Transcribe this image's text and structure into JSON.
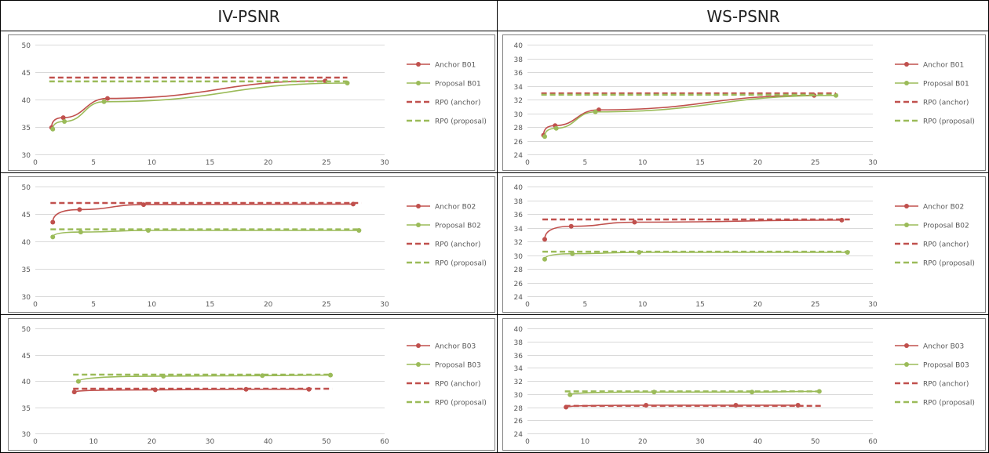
{
  "headers": [
    "IV-PSNR",
    "WS-PSNR"
  ],
  "colors": {
    "anchor": "#c0504d",
    "proposal": "#9bbb59",
    "grid": "#d9d9d9",
    "border": "#000000",
    "axis_text": "#595959"
  },
  "chart_data": [
    {
      "type": "line",
      "metric": "IV-PSNR",
      "xlim": [
        0,
        30
      ],
      "xticks": [
        0,
        5,
        10,
        15,
        20,
        25,
        30
      ],
      "ylim": [
        30,
        50
      ],
      "yticks": [
        30,
        35,
        40,
        45,
        50
      ],
      "series": [
        {
          "name": "Anchor B01",
          "kind": "anchor",
          "style": "solid",
          "x": [
            1.4,
            2.4,
            6.2,
            24.9
          ],
          "y": [
            34.9,
            36.7,
            40.2,
            43.4
          ]
        },
        {
          "name": "Proposal B01",
          "kind": "proposal",
          "style": "solid",
          "x": [
            1.5,
            2.5,
            5.9,
            26.8
          ],
          "y": [
            34.6,
            36.0,
            39.6,
            43.0
          ]
        },
        {
          "name": "RP0 (anchor)",
          "kind": "anchor",
          "style": "dashed",
          "x": [
            1.2,
            26.8
          ],
          "y": [
            44.0,
            44.0
          ]
        },
        {
          "name": "RP0 (proposal)",
          "kind": "proposal",
          "style": "dashed",
          "x": [
            1.2,
            26.8
          ],
          "y": [
            43.3,
            43.3
          ]
        }
      ]
    },
    {
      "type": "line",
      "metric": "WS-PSNR",
      "xlim": [
        0,
        30
      ],
      "xticks": [
        0,
        5,
        10,
        15,
        20,
        25,
        30
      ],
      "ylim": [
        24,
        40
      ],
      "yticks": [
        24,
        26,
        28,
        30,
        32,
        34,
        36,
        38,
        40
      ],
      "series": [
        {
          "name": "Anchor B01",
          "kind": "anchor",
          "style": "solid",
          "x": [
            1.4,
            2.4,
            6.2,
            24.9
          ],
          "y": [
            26.8,
            28.2,
            30.5,
            32.6
          ]
        },
        {
          "name": "Proposal B01",
          "kind": "proposal",
          "style": "solid",
          "x": [
            1.5,
            2.5,
            5.9,
            26.8
          ],
          "y": [
            26.6,
            27.8,
            30.2,
            32.6
          ]
        },
        {
          "name": "RP0 (anchor)",
          "kind": "anchor",
          "style": "dashed",
          "x": [
            1.2,
            26.8
          ],
          "y": [
            32.9,
            32.9
          ]
        },
        {
          "name": "RP0 (proposal)",
          "kind": "proposal",
          "style": "dashed",
          "x": [
            1.2,
            26.8
          ],
          "y": [
            32.7,
            32.7
          ]
        }
      ]
    },
    {
      "type": "line",
      "metric": "IV-PSNR",
      "xlim": [
        0,
        30
      ],
      "xticks": [
        0,
        5,
        10,
        15,
        20,
        25,
        30
      ],
      "ylim": [
        30,
        50
      ],
      "yticks": [
        30,
        35,
        40,
        45,
        50
      ],
      "series": [
        {
          "name": "Anchor B02",
          "kind": "anchor",
          "style": "solid",
          "x": [
            1.5,
            3.8,
            9.3,
            27.3
          ],
          "y": [
            43.5,
            45.8,
            46.7,
            46.8
          ]
        },
        {
          "name": "Proposal B02",
          "kind": "proposal",
          "style": "solid",
          "x": [
            1.5,
            3.9,
            9.7,
            27.8
          ],
          "y": [
            40.8,
            41.7,
            42.0,
            42.0
          ]
        },
        {
          "name": "RP0 (anchor)",
          "kind": "anchor",
          "style": "dashed",
          "x": [
            1.3,
            28.0
          ],
          "y": [
            47.0,
            47.0
          ]
        },
        {
          "name": "RP0 (proposal)",
          "kind": "proposal",
          "style": "dashed",
          "x": [
            1.3,
            28.0
          ],
          "y": [
            42.2,
            42.2
          ]
        }
      ]
    },
    {
      "type": "line",
      "metric": "WS-PSNR",
      "xlim": [
        0,
        30
      ],
      "xticks": [
        0,
        5,
        10,
        15,
        20,
        25,
        30
      ],
      "ylim": [
        24,
        40
      ],
      "yticks": [
        24,
        26,
        28,
        30,
        32,
        34,
        36,
        38,
        40
      ],
      "series": [
        {
          "name": "Anchor B02",
          "kind": "anchor",
          "style": "solid",
          "x": [
            1.5,
            3.8,
            9.3,
            27.3
          ],
          "y": [
            32.3,
            34.2,
            34.8,
            35.1
          ]
        },
        {
          "name": "Proposal B02",
          "kind": "proposal",
          "style": "solid",
          "x": [
            1.5,
            3.9,
            9.7,
            27.8
          ],
          "y": [
            29.4,
            30.2,
            30.4,
            30.4
          ]
        },
        {
          "name": "RP0 (anchor)",
          "kind": "anchor",
          "style": "dashed",
          "x": [
            1.3,
            28.0
          ],
          "y": [
            35.2,
            35.2
          ]
        },
        {
          "name": "RP0 (proposal)",
          "kind": "proposal",
          "style": "dashed",
          "x": [
            1.3,
            28.0
          ],
          "y": [
            30.5,
            30.5
          ]
        }
      ]
    },
    {
      "type": "line",
      "metric": "IV-PSNR",
      "xlim": [
        0,
        60
      ],
      "xticks": [
        0,
        10,
        20,
        30,
        40,
        50,
        60
      ],
      "ylim": [
        30,
        50
      ],
      "yticks": [
        30,
        35,
        40,
        45,
        50
      ],
      "series": [
        {
          "name": "Anchor B03",
          "kind": "anchor",
          "style": "solid",
          "x": [
            6.7,
            20.6,
            36.2,
            47.0
          ],
          "y": [
            37.9,
            38.3,
            38.4,
            38.4
          ]
        },
        {
          "name": "Proposal B03",
          "kind": "proposal",
          "style": "solid",
          "x": [
            7.4,
            22.0,
            39.0,
            50.7
          ],
          "y": [
            39.9,
            40.9,
            41.0,
            41.1
          ]
        },
        {
          "name": "RP0 (anchor)",
          "kind": "anchor",
          "style": "dashed",
          "x": [
            6.5,
            51.0
          ],
          "y": [
            38.5,
            38.5
          ]
        },
        {
          "name": "RP0 (proposal)",
          "kind": "proposal",
          "style": "dashed",
          "x": [
            6.5,
            51.0
          ],
          "y": [
            41.2,
            41.2
          ]
        }
      ]
    },
    {
      "type": "line",
      "metric": "WS-PSNR",
      "xlim": [
        0,
        60
      ],
      "xticks": [
        0,
        10,
        20,
        30,
        40,
        50,
        60
      ],
      "ylim": [
        24,
        40
      ],
      "yticks": [
        24,
        26,
        28,
        30,
        32,
        34,
        36,
        38,
        40
      ],
      "series": [
        {
          "name": "Anchor B03",
          "kind": "anchor",
          "style": "solid",
          "x": [
            6.7,
            20.6,
            36.2,
            47.0
          ],
          "y": [
            28.0,
            28.3,
            28.3,
            28.3
          ]
        },
        {
          "name": "Proposal B03",
          "kind": "proposal",
          "style": "solid",
          "x": [
            7.4,
            22.0,
            39.0,
            50.7
          ],
          "y": [
            29.9,
            30.3,
            30.3,
            30.4
          ]
        },
        {
          "name": "RP0 (anchor)",
          "kind": "anchor",
          "style": "dashed",
          "x": [
            6.5,
            51.0
          ],
          "y": [
            28.2,
            28.2
          ]
        },
        {
          "name": "RP0 (proposal)",
          "kind": "proposal",
          "style": "dashed",
          "x": [
            6.5,
            51.0
          ],
          "y": [
            30.4,
            30.4
          ]
        }
      ]
    }
  ]
}
